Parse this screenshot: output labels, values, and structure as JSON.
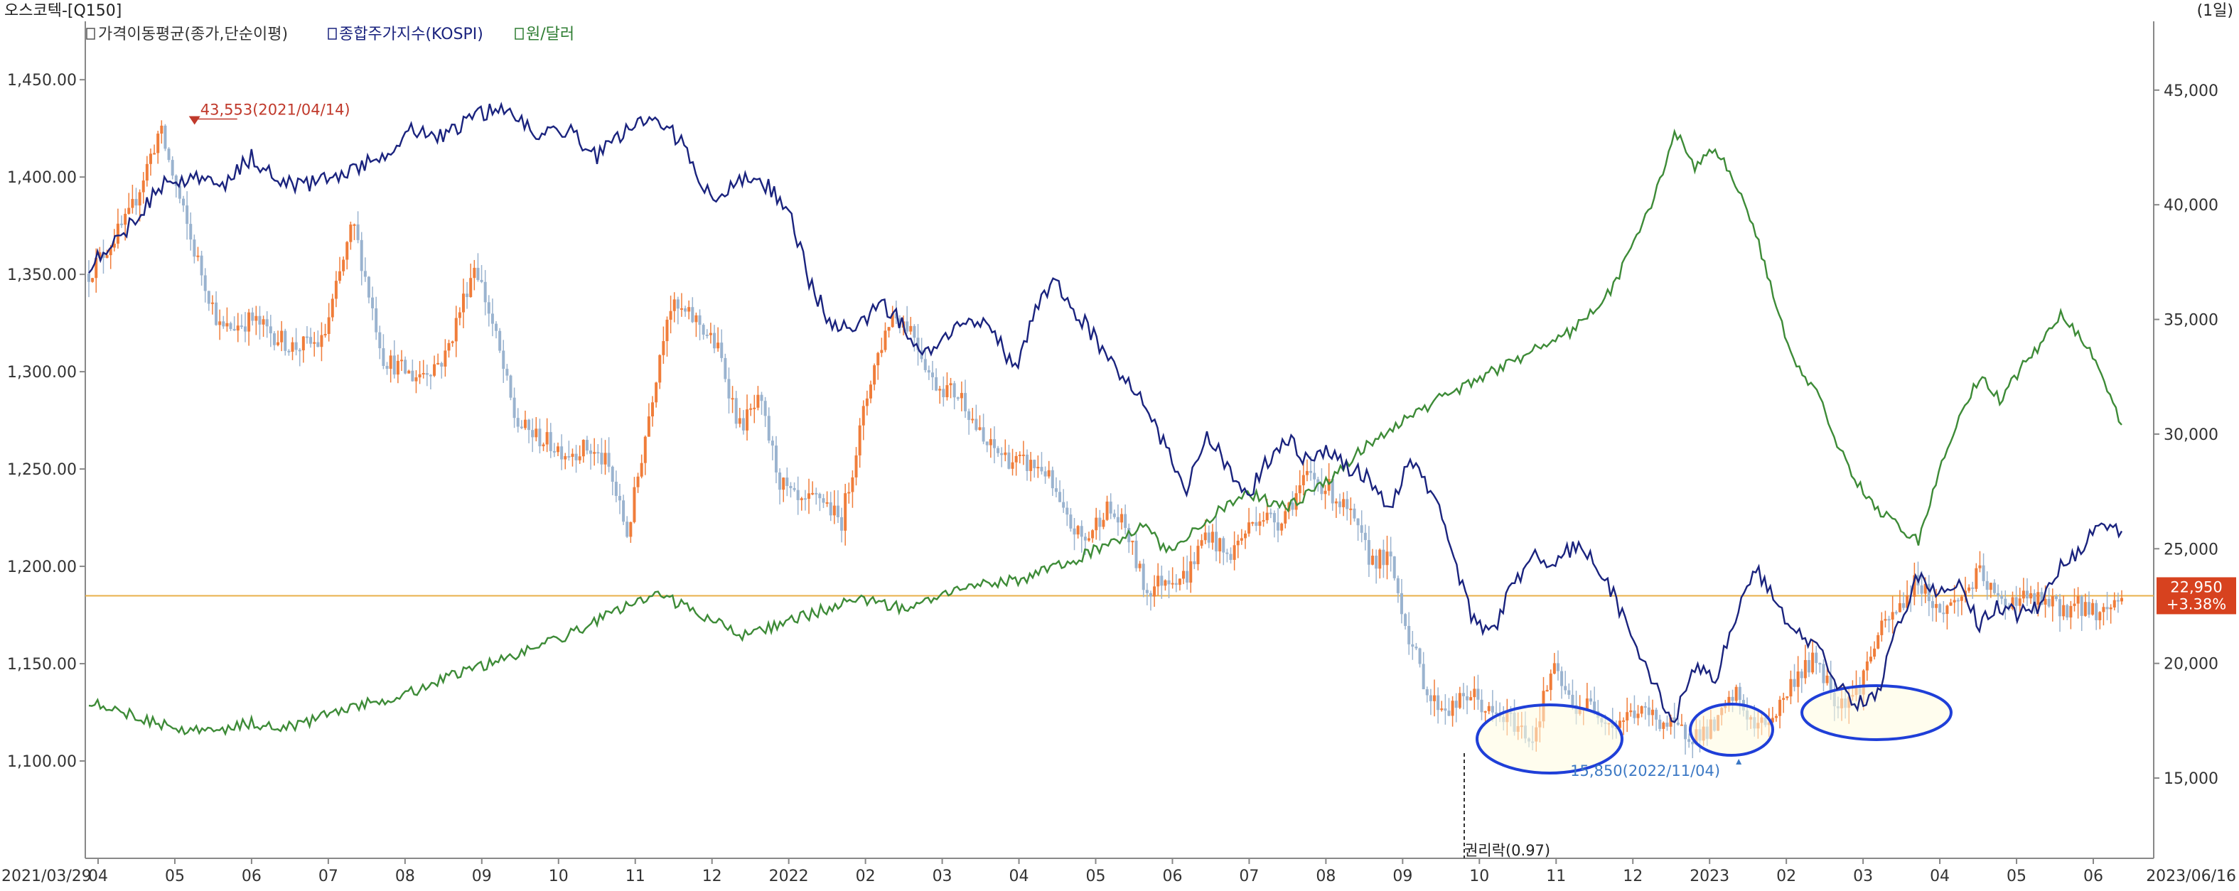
{
  "header": {
    "title": "오스코텍-[Q150]",
    "period": "(1일)"
  },
  "legend": [
    {
      "label": "가격이동평균(종가,단순이평)",
      "color": "#333333"
    },
    {
      "label": "종합주가지수(KOSPI)",
      "color": "#1a237e"
    },
    {
      "label": "원/달러",
      "color": "#2e7d32"
    }
  ],
  "colors": {
    "kospi": "#1a237e",
    "krw_usd": "#3d8b37",
    "price_up": "#f07d3a",
    "price_down": "#9ab3cf",
    "hline": "#e8b04a",
    "annotation_high": "#c0392b",
    "annotation_low": "#3b78c4",
    "ellipse": "#1f3fd8",
    "ellipse_fill": "#fffbe0",
    "badge": "#d7421f"
  },
  "chart_data": {
    "type": "line",
    "x_range": [
      "2021/03/29",
      "2023/06/16"
    ],
    "x_ticks": [
      "2021/03/29",
      "04",
      "05",
      "06",
      "07",
      "08",
      "09",
      "10",
      "11",
      "12",
      "2022",
      "02",
      "03",
      "04",
      "05",
      "06",
      "07",
      "08",
      "09",
      "10",
      "11",
      "12",
      "2023",
      "02",
      "03",
      "04",
      "05",
      "06",
      "2023/06/16"
    ],
    "left_axis": {
      "min": 1050,
      "max": 1480,
      "ticks": [
        "1,100.00",
        "1,150.00",
        "1,200.00",
        "1,250.00",
        "1,300.00",
        "1,350.00",
        "1,400.00",
        "1,450.00"
      ]
    },
    "right_axis": {
      "min": 11500,
      "max": 48000,
      "ticks": [
        "15,000",
        "20,000",
        "25,000",
        "30,000",
        "35,000",
        "40,000",
        "45,000"
      ]
    },
    "series": [
      {
        "name": "종합주가지수(KOSPI)",
        "axis": "left",
        "points": [
          [
            0,
            1355
          ],
          [
            0.02,
            1375
          ],
          [
            0.035,
            1395
          ],
          [
            0.05,
            1400
          ],
          [
            0.065,
            1395
          ],
          [
            0.08,
            1410
          ],
          [
            0.1,
            1395
          ],
          [
            0.12,
            1400
          ],
          [
            0.14,
            1408
          ],
          [
            0.16,
            1425
          ],
          [
            0.175,
            1420
          ],
          [
            0.19,
            1432
          ],
          [
            0.2,
            1435
          ],
          [
            0.21,
            1433
          ],
          [
            0.22,
            1420
          ],
          [
            0.235,
            1425
          ],
          [
            0.25,
            1410
          ],
          [
            0.26,
            1420
          ],
          [
            0.275,
            1430
          ],
          [
            0.29,
            1420
          ],
          [
            0.3,
            1400
          ],
          [
            0.31,
            1385
          ],
          [
            0.32,
            1400
          ],
          [
            0.335,
            1395
          ],
          [
            0.345,
            1380
          ],
          [
            0.355,
            1345
          ],
          [
            0.365,
            1325
          ],
          [
            0.375,
            1320
          ],
          [
            0.39,
            1335
          ],
          [
            0.4,
            1325
          ],
          [
            0.41,
            1310
          ],
          [
            0.42,
            1318
          ],
          [
            0.43,
            1325
          ],
          [
            0.445,
            1322
          ],
          [
            0.455,
            1300
          ],
          [
            0.465,
            1330
          ],
          [
            0.475,
            1345
          ],
          [
            0.49,
            1325
          ],
          [
            0.5,
            1310
          ],
          [
            0.515,
            1290
          ],
          [
            0.53,
            1260
          ],
          [
            0.54,
            1240
          ],
          [
            0.55,
            1270
          ],
          [
            0.56,
            1250
          ],
          [
            0.57,
            1235
          ],
          [
            0.58,
            1255
          ],
          [
            0.59,
            1265
          ],
          [
            0.6,
            1253
          ],
          [
            0.61,
            1260
          ],
          [
            0.62,
            1250
          ],
          [
            0.63,
            1245
          ],
          [
            0.64,
            1230
          ],
          [
            0.65,
            1255
          ],
          [
            0.66,
            1240
          ],
          [
            0.67,
            1210
          ],
          [
            0.68,
            1175
          ],
          [
            0.69,
            1165
          ],
          [
            0.7,
            1190
          ],
          [
            0.71,
            1205
          ],
          [
            0.72,
            1200
          ],
          [
            0.73,
            1210
          ],
          [
            0.74,
            1205
          ],
          [
            0.75,
            1185
          ],
          [
            0.76,
            1160
          ],
          [
            0.77,
            1140
          ],
          [
            0.78,
            1120
          ],
          [
            0.79,
            1150
          ],
          [
            0.8,
            1140
          ],
          [
            0.81,
            1175
          ],
          [
            0.82,
            1200
          ],
          [
            0.83,
            1180
          ],
          [
            0.84,
            1165
          ],
          [
            0.85,
            1160
          ],
          [
            0.86,
            1140
          ],
          [
            0.87,
            1130
          ],
          [
            0.88,
            1135
          ],
          [
            0.89,
            1170
          ],
          [
            0.9,
            1195
          ],
          [
            0.91,
            1185
          ],
          [
            0.92,
            1195
          ],
          [
            0.93,
            1170
          ],
          [
            0.94,
            1180
          ],
          [
            0.95,
            1175
          ],
          [
            0.96,
            1180
          ],
          [
            0.97,
            1200
          ],
          [
            0.98,
            1210
          ],
          [
            0.99,
            1220
          ],
          [
            1.0,
            1218
          ]
        ]
      },
      {
        "name": "원/달러",
        "axis": "right",
        "points": [
          [
            0,
            18400
          ],
          [
            0.02,
            17800
          ],
          [
            0.04,
            17200
          ],
          [
            0.06,
            17000
          ],
          [
            0.08,
            17400
          ],
          [
            0.1,
            17200
          ],
          [
            0.12,
            17900
          ],
          [
            0.14,
            18300
          ],
          [
            0.16,
            18800
          ],
          [
            0.18,
            19500
          ],
          [
            0.2,
            20100
          ],
          [
            0.22,
            20700
          ],
          [
            0.24,
            21400
          ],
          [
            0.26,
            22300
          ],
          [
            0.28,
            23000
          ],
          [
            0.3,
            22200
          ],
          [
            0.32,
            21200
          ],
          [
            0.34,
            21700
          ],
          [
            0.36,
            22300
          ],
          [
            0.38,
            22800
          ],
          [
            0.4,
            22400
          ],
          [
            0.42,
            23100
          ],
          [
            0.44,
            23400
          ],
          [
            0.46,
            23700
          ],
          [
            0.48,
            24300
          ],
          [
            0.5,
            25200
          ],
          [
            0.52,
            26000
          ],
          [
            0.53,
            24800
          ],
          [
            0.55,
            26300
          ],
          [
            0.57,
            27400
          ],
          [
            0.59,
            26800
          ],
          [
            0.61,
            28000
          ],
          [
            0.63,
            29600
          ],
          [
            0.65,
            30800
          ],
          [
            0.67,
            31800
          ],
          [
            0.69,
            32700
          ],
          [
            0.71,
            33600
          ],
          [
            0.73,
            34500
          ],
          [
            0.75,
            36400
          ],
          [
            0.77,
            40300
          ],
          [
            0.78,
            43200
          ],
          [
            0.79,
            41700
          ],
          [
            0.8,
            42400
          ],
          [
            0.81,
            41000
          ],
          [
            0.82,
            38800
          ],
          [
            0.83,
            35500
          ],
          [
            0.84,
            32900
          ],
          [
            0.85,
            31900
          ],
          [
            0.86,
            29600
          ],
          [
            0.87,
            27900
          ],
          [
            0.88,
            26700
          ],
          [
            0.89,
            26000
          ],
          [
            0.9,
            25300
          ],
          [
            0.91,
            28300
          ],
          [
            0.92,
            30900
          ],
          [
            0.93,
            32500
          ],
          [
            0.94,
            31500
          ],
          [
            0.95,
            32800
          ],
          [
            0.96,
            33900
          ],
          [
            0.97,
            35200
          ],
          [
            0.98,
            34300
          ],
          [
            0.99,
            32500
          ],
          [
            1.0,
            30400
          ]
        ]
      },
      {
        "name": "주가",
        "axis": "right",
        "points": [
          [
            0,
            37000
          ],
          [
            0.02,
            39500
          ],
          [
            0.035,
            43300
          ],
          [
            0.05,
            38500
          ],
          [
            0.065,
            34500
          ],
          [
            0.08,
            35000
          ],
          [
            0.1,
            33800
          ],
          [
            0.115,
            34000
          ],
          [
            0.13,
            39200
          ],
          [
            0.145,
            33300
          ],
          [
            0.16,
            32500
          ],
          [
            0.175,
            33300
          ],
          [
            0.19,
            37500
          ],
          [
            0.2,
            34300
          ],
          [
            0.21,
            30500
          ],
          [
            0.22,
            29900
          ],
          [
            0.235,
            29200
          ],
          [
            0.245,
            29400
          ],
          [
            0.255,
            28700
          ],
          [
            0.265,
            25600
          ],
          [
            0.275,
            30600
          ],
          [
            0.285,
            35600
          ],
          [
            0.3,
            34900
          ],
          [
            0.31,
            33600
          ],
          [
            0.32,
            30300
          ],
          [
            0.33,
            31400
          ],
          [
            0.34,
            27900
          ],
          [
            0.35,
            26800
          ],
          [
            0.36,
            27300
          ],
          [
            0.37,
            26100
          ],
          [
            0.385,
            32600
          ],
          [
            0.395,
            35300
          ],
          [
            0.405,
            34600
          ],
          [
            0.415,
            32300
          ],
          [
            0.43,
            31600
          ],
          [
            0.44,
            29600
          ],
          [
            0.455,
            28800
          ],
          [
            0.47,
            28500
          ],
          [
            0.48,
            26300
          ],
          [
            0.49,
            25300
          ],
          [
            0.5,
            26800
          ],
          [
            0.51,
            25900
          ],
          [
            0.52,
            23100
          ],
          [
            0.53,
            23800
          ],
          [
            0.54,
            23800
          ],
          [
            0.55,
            25800
          ],
          [
            0.56,
            24600
          ],
          [
            0.575,
            26500
          ],
          [
            0.585,
            26200
          ],
          [
            0.6,
            28200
          ],
          [
            0.61,
            27600
          ],
          [
            0.62,
            26500
          ],
          [
            0.63,
            24600
          ],
          [
            0.64,
            24500
          ],
          [
            0.65,
            21000
          ],
          [
            0.66,
            18400
          ],
          [
            0.67,
            18000
          ],
          [
            0.68,
            18700
          ],
          [
            0.69,
            17700
          ],
          [
            0.7,
            17500
          ],
          [
            0.71,
            16700
          ],
          [
            0.72,
            19800
          ],
          [
            0.73,
            18100
          ],
          [
            0.74,
            18200
          ],
          [
            0.75,
            17300
          ],
          [
            0.76,
            17900
          ],
          [
            0.77,
            17700
          ],
          [
            0.78,
            17100
          ],
          [
            0.79,
            16900
          ],
          [
            0.8,
            17200
          ],
          [
            0.81,
            18700
          ],
          [
            0.82,
            17100
          ],
          [
            0.83,
            17900
          ],
          [
            0.84,
            19500
          ],
          [
            0.85,
            20200
          ],
          [
            0.86,
            18300
          ],
          [
            0.87,
            18800
          ],
          [
            0.88,
            21200
          ],
          [
            0.89,
            22400
          ],
          [
            0.9,
            23700
          ],
          [
            0.91,
            22200
          ],
          [
            0.92,
            22800
          ],
          [
            0.93,
            23900
          ],
          [
            0.94,
            22600
          ],
          [
            0.95,
            22900
          ],
          [
            0.96,
            22700
          ],
          [
            0.97,
            22400
          ],
          [
            0.98,
            22500
          ],
          [
            0.99,
            22200
          ],
          [
            1.0,
            22950
          ]
        ]
      }
    ],
    "horizontal_line_value": 22950,
    "annotations": {
      "high": "43,553(2021/04/14)",
      "low": "15,850(2022/11/04)",
      "rights": "권리락(0.97)"
    },
    "badge": {
      "price": "22,950",
      "change": "+3.38%"
    }
  }
}
